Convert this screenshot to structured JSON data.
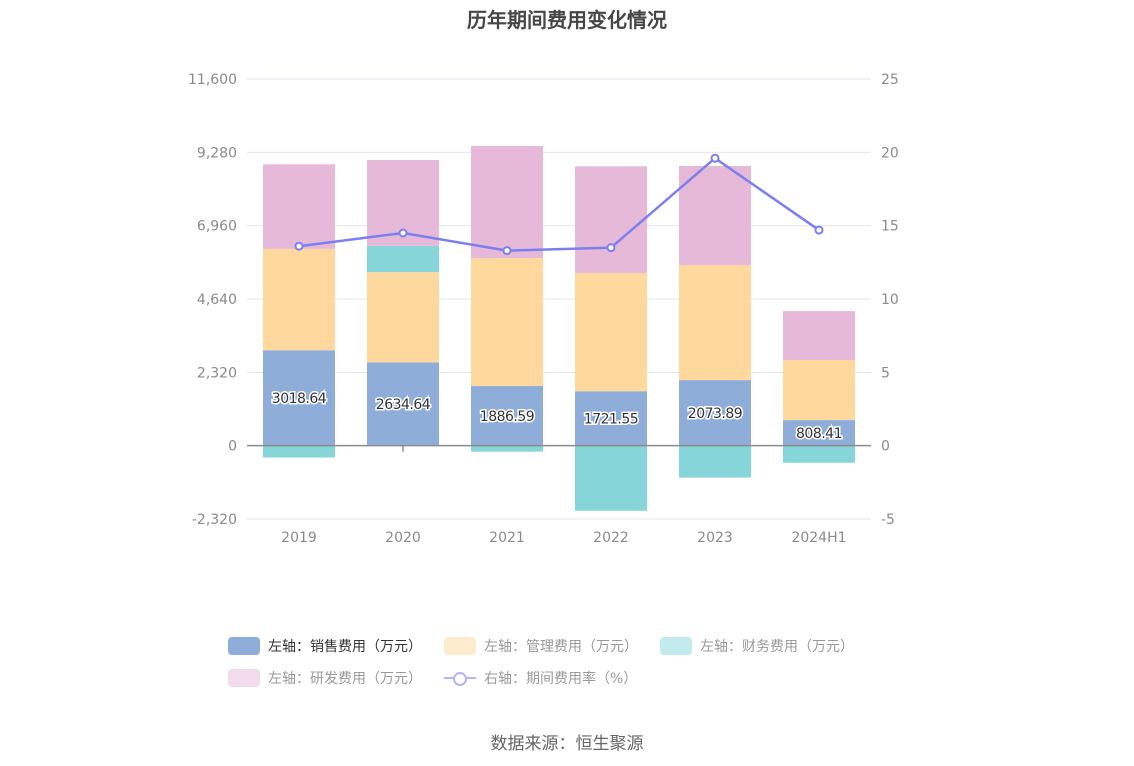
{
  "chart_data": {
    "type": "bar",
    "stacked": true,
    "title": "历年期间费用变化情况",
    "categories": [
      "2019",
      "2020",
      "2021",
      "2022",
      "2023",
      "2024H1"
    ],
    "series": [
      {
        "name": "左轴：销售费用（万元）",
        "axis": "left",
        "type": "bar",
        "color": "#8eadd9",
        "values": [
          3018.64,
          2634.64,
          1886.59,
          1721.55,
          2073.89,
          808.41
        ],
        "labels": true
      },
      {
        "name": "左轴：管理费用（万元）",
        "axis": "left",
        "type": "bar",
        "color": "#fed89c",
        "values": [
          3206,
          2854,
          4045,
          3736,
          3636,
          1900
        ]
      },
      {
        "name": "左轴：财务费用（万元）",
        "axis": "left",
        "type": "bar",
        "color": "#86d5d8",
        "values": [
          -375,
          831,
          -190,
          -2060,
          -1010,
          -540
        ]
      },
      {
        "name": "左轴：研发费用（万元）",
        "axis": "left",
        "type": "bar",
        "color": "#e7b9d8",
        "values": [
          2677,
          2718,
          3548,
          3382,
          3138,
          1549
        ]
      },
      {
        "name": "右轴：期间费用率（%）",
        "axis": "right",
        "type": "line",
        "color": "#7b7ff0",
        "values": [
          13.6,
          14.5,
          13.3,
          13.5,
          19.6,
          14.7
        ]
      }
    ],
    "y_left": {
      "min": -2320,
      "max": 11600,
      "ticks": [
        -2320,
        0,
        2320,
        4640,
        6960,
        9280,
        11600
      ],
      "tick_labels": [
        "-2,320",
        "0",
        "2,320",
        "4,640",
        "6,960",
        "9,280",
        "11,600"
      ]
    },
    "y_right": {
      "min": -5,
      "max": 25,
      "ticks": [
        -5,
        0,
        5,
        10,
        15,
        20,
        25
      ],
      "tick_labels": [
        "-5",
        "0",
        "5",
        "10",
        "15",
        "20",
        "25"
      ]
    },
    "grid": true,
    "legend_position": "bottom"
  },
  "legend": [
    {
      "label": "左轴：销售费用（万元）",
      "swatch": "#8eadd9",
      "active": true
    },
    {
      "label": "左轴：管理费用（万元）",
      "swatch": "#fdebcd",
      "active": false
    },
    {
      "label": "左轴：财务费用（万元）",
      "swatch": "#c3eaec",
      "active": false
    },
    {
      "label": "左轴：研发费用（万元）",
      "swatch": "#f2dcec",
      "active": false
    },
    {
      "label": "右轴：期间费用率（%）",
      "swatch": "line",
      "active": false
    }
  ],
  "source": "数据来源：恒生聚源"
}
